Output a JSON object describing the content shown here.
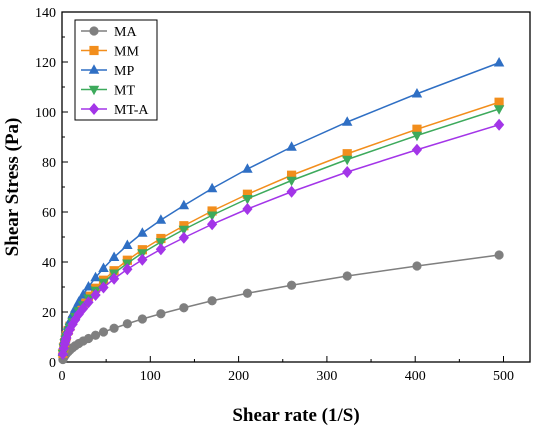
{
  "chart_data": {
    "type": "line",
    "title": "",
    "xlabel": "Shear rate (1/S)",
    "ylabel": "Shear Stress (Pa)",
    "xlim": [
      0,
      530
    ],
    "ylim": [
      0,
      140
    ],
    "xticks": [
      0,
      100,
      200,
      300,
      400,
      500
    ],
    "yticks": [
      0,
      20,
      40,
      60,
      80,
      100,
      120,
      140
    ],
    "grid": false,
    "legend_position": "top-left",
    "series": [
      {
        "name": "MA",
        "color": "#7f7f7f",
        "marker": "circle",
        "x": [
          1,
          2,
          3,
          4,
          5,
          7,
          9,
          12,
          15,
          19,
          24,
          30,
          38,
          47,
          59,
          74,
          91,
          112,
          138,
          170,
          210,
          260,
          323,
          402,
          495
        ],
        "y": [
          1.0,
          1.8,
          2.4,
          2.9,
          3.4,
          4.1,
          4.8,
          5.7,
          6.5,
          7.4,
          8.4,
          9.4,
          10.7,
          12.0,
          13.5,
          15.3,
          17.2,
          19.3,
          21.7,
          24.5,
          27.5,
          30.7,
          34.4,
          38.4,
          42.8
        ]
      },
      {
        "name": "MM",
        "color": "#f28e1c",
        "marker": "square",
        "x": [
          1,
          2,
          3,
          4,
          5,
          7,
          9,
          12,
          15,
          19,
          24,
          30,
          38,
          47,
          59,
          74,
          91,
          112,
          138,
          170,
          210,
          260,
          323,
          402,
          495
        ],
        "y": [
          3.5,
          6.0,
          7.8,
          9.3,
          10.5,
          12.6,
          14.3,
          16.6,
          18.6,
          21.0,
          23.5,
          26.3,
          29.5,
          32.7,
          36.5,
          40.7,
          44.9,
          49.4,
          54.5,
          60.4,
          67.1,
          74.7,
          83.3,
          93.1,
          103.9
        ]
      },
      {
        "name": "MP",
        "color": "#2f6fc4",
        "marker": "triangle-up",
        "x": [
          1,
          2,
          3,
          4,
          5,
          7,
          9,
          12,
          15,
          19,
          24,
          30,
          38,
          47,
          59,
          74,
          91,
          112,
          138,
          170,
          210,
          260,
          323,
          402,
          495
        ],
        "y": [
          4.0,
          6.7,
          8.8,
          10.5,
          11.9,
          14.3,
          16.3,
          19.0,
          21.3,
          24.0,
          26.9,
          30.1,
          33.8,
          37.5,
          41.9,
          46.7,
          51.6,
          56.8,
          62.6,
          69.4,
          77.2,
          86.0,
          96.0,
          107.3,
          119.7
        ]
      },
      {
        "name": "MT",
        "color": "#3daa5c",
        "marker": "triangle-down",
        "x": [
          1,
          2,
          3,
          4,
          5,
          7,
          9,
          12,
          15,
          19,
          24,
          30,
          38,
          47,
          59,
          74,
          91,
          112,
          138,
          170,
          210,
          260,
          323,
          402,
          495
        ],
        "y": [
          3.4,
          5.8,
          7.6,
          9.0,
          10.2,
          12.2,
          13.9,
          16.1,
          18.1,
          20.4,
          22.8,
          25.5,
          28.6,
          31.8,
          35.5,
          39.5,
          43.6,
          48.0,
          53.0,
          58.7,
          65.3,
          72.6,
          81.0,
          90.6,
          101.2
        ]
      },
      {
        "name": "MT-A",
        "color": "#a335e8",
        "marker": "diamond",
        "x": [
          1,
          2,
          3,
          4,
          5,
          7,
          9,
          12,
          15,
          19,
          24,
          30,
          38,
          47,
          59,
          74,
          91,
          112,
          138,
          170,
          210,
          260,
          323,
          402,
          495
        ],
        "y": [
          3.2,
          5.4,
          7.1,
          8.4,
          9.6,
          11.4,
          13.0,
          15.1,
          16.9,
          19.1,
          21.4,
          23.9,
          26.8,
          29.8,
          33.3,
          37.1,
          40.9,
          45.1,
          49.7,
          55.1,
          61.2,
          68.1,
          76.0,
          84.9,
          94.9
        ]
      }
    ]
  }
}
